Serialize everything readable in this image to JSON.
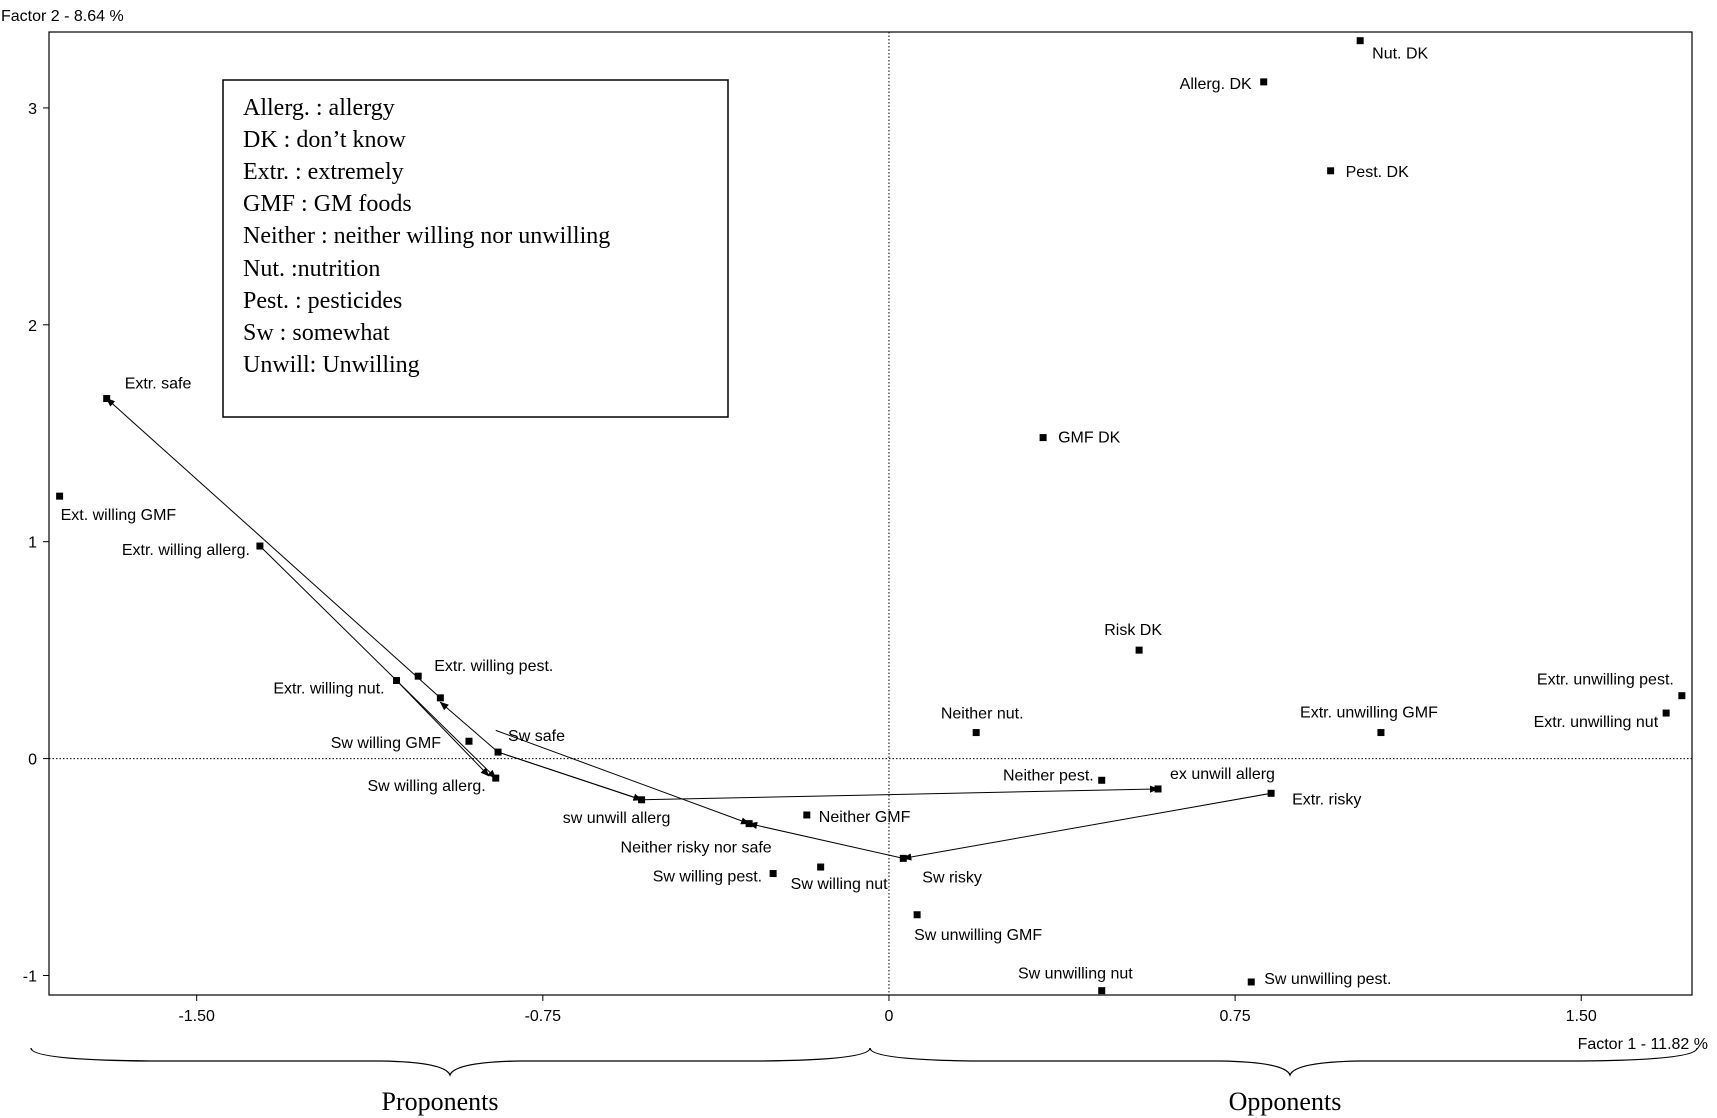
{
  "chart_data": {
    "type": "scatter",
    "xlabel": "Factor 1  -  11.82 %",
    "ylabel": "Factor 2  -  8.64 %",
    "xlim": [
      -1.82,
      1.74
    ],
    "ylim": [
      -1.09,
      3.35
    ],
    "xticks": [
      {
        "value": -1.5,
        "label": "-1.50"
      },
      {
        "value": -0.75,
        "label": "-0.75"
      },
      {
        "value": 0,
        "label": "0"
      },
      {
        "value": 0.75,
        "label": "0.75"
      },
      {
        "value": 1.5,
        "label": "1.50"
      }
    ],
    "yticks": [
      {
        "value": 0,
        "label": "0"
      },
      {
        "value": 1,
        "label": "1"
      },
      {
        "value": 2,
        "label": "2"
      },
      {
        "value": 3,
        "label": "3"
      },
      {
        "value": -1,
        "label": "-1"
      }
    ],
    "points": [
      {
        "label": "Nut. DK",
        "x": 1.021,
        "y": 3.31,
        "anchor": "start",
        "dx": 12,
        "dy": 18
      },
      {
        "label": "Allerg. DK",
        "x": 0.812,
        "y": 3.12,
        "anchor": "end",
        "dx": -12,
        "dy": 7
      },
      {
        "label": "Pest. DK",
        "x": 0.957,
        "y": 2.71,
        "anchor": "start",
        "dx": 15,
        "dy": 6
      },
      {
        "label": "GMF DK",
        "x": 0.334,
        "y": 1.48,
        "anchor": "start",
        "dx": 15,
        "dy": 5
      },
      {
        "label": "Risk DK",
        "x": 0.542,
        "y": 0.5,
        "anchor": "middle",
        "dx": -6,
        "dy": -15
      },
      {
        "label": "Extr. unwilling pest.",
        "x": 1.718,
        "y": 0.29,
        "anchor": "end",
        "dx": -8,
        "dy": -11
      },
      {
        "label": "Extr. unwilling nut",
        "x": 1.684,
        "y": 0.21,
        "anchor": "end",
        "dx": -8,
        "dy": 14
      },
      {
        "label": "Extr. unwilling GMF",
        "x": 1.066,
        "y": 0.12,
        "anchor": "middle",
        "dx": -12,
        "dy": -15
      },
      {
        "label": "Neither nut.",
        "x": 0.189,
        "y": 0.12,
        "anchor": "middle",
        "dx": 6,
        "dy": -14
      },
      {
        "label": "Neither pest.",
        "x": 0.461,
        "y": -0.1,
        "anchor": "end",
        "dx": -8,
        "dy": 0
      },
      {
        "label": "ex unwill allerg",
        "x": 0.583,
        "y": -0.14,
        "anchor": "start",
        "dx": 12,
        "dy": -10
      },
      {
        "label": "Extr. risky",
        "x": 0.828,
        "y": -0.16,
        "anchor": "start",
        "dx": 21,
        "dy": 11
      },
      {
        "label": "Neither GMF",
        "x": -0.178,
        "y": -0.26,
        "anchor": "start",
        "dx": 12,
        "dy": 7
      },
      {
        "label": "Sw willing nut",
        "x": -0.148,
        "y": -0.5,
        "anchor": "start",
        "dx": -30,
        "dy": 22
      },
      {
        "label": "Sw willing pest.",
        "x": -0.251,
        "y": -0.53,
        "anchor": "end",
        "dx": -11,
        "dy": 8
      },
      {
        "label": "Sw risky",
        "x": 0.031,
        "y": -0.46,
        "anchor": "start",
        "dx": 19,
        "dy": 24
      },
      {
        "label": "Sw unwilling GMF",
        "x": 0.061,
        "y": -0.72,
        "anchor": "start",
        "dx": -3,
        "dy": 25
      },
      {
        "label": "Sw unwilling nut",
        "x": 0.461,
        "y": -1.07,
        "anchor": "end",
        "dx": 31,
        "dy": -12
      },
      {
        "label": "Sw unwilling pest.",
        "x": 0.785,
        "y": -1.03,
        "anchor": "start",
        "dx": 13,
        "dy": 2
      },
      {
        "label": "Extr. safe",
        "x": -1.695,
        "y": 1.66,
        "anchor": "start",
        "dx": 18,
        "dy": -10
      },
      {
        "label": "Ext. willing GMF",
        "x": -1.797,
        "y": 1.21,
        "anchor": "start",
        "dx": 1,
        "dy": 24
      },
      {
        "label": "Extr. willing allerg.",
        "x": -1.363,
        "y": 0.98,
        "anchor": "end",
        "dx": -10,
        "dy": 9
      },
      {
        "label": "Extr. willing pest.",
        "x": -1.02,
        "y": 0.38,
        "anchor": "start",
        "dx": 16,
        "dy": -5
      },
      {
        "label": "Extr. willing nut.",
        "x": -1.067,
        "y": 0.36,
        "anchor": "end",
        "dx": -12,
        "dy": 13
      },
      {
        "label": "Sw willing GMF",
        "x": -0.91,
        "y": 0.08,
        "anchor": "end",
        "dx": -28,
        "dy": 7
      },
      {
        "label": "Sw safe",
        "x": -0.847,
        "y": 0.03,
        "anchor": "start",
        "dx": 10,
        "dy": -11
      },
      {
        "label": "Sw willing allerg.",
        "x": -0.852,
        "y": -0.09,
        "anchor": "end",
        "dx": -10,
        "dy": 13
      },
      {
        "label": "sw unwill allerg",
        "x": -0.536,
        "y": -0.19,
        "anchor": "middle",
        "dx": -25,
        "dy": 23
      },
      {
        "label": "Neither risky nor safe",
        "x": -0.303,
        "y": -0.3,
        "anchor": "middle",
        "dx": -53,
        "dy": 29
      },
      {
        "label": "",
        "x": -0.972,
        "y": 0.28,
        "anchor": "start",
        "dx": 0,
        "dy": 0
      }
    ],
    "arrows": [
      {
        "from": [
          -0.972,
          0.28
        ],
        "to": [
          -1.695,
          1.66
        ]
      },
      {
        "from": [
          -1.363,
          0.98
        ],
        "to": [
          -0.852,
          -0.09
        ]
      },
      {
        "from": [
          -1.067,
          0.36
        ],
        "to": [
          -0.867,
          -0.08
        ]
      },
      {
        "from": [
          -0.847,
          0.03
        ],
        "to": [
          -0.972,
          0.26
        ]
      },
      {
        "from": [
          -0.847,
          0.03
        ],
        "to": [
          -0.536,
          -0.19
        ]
      },
      {
        "from": [
          -0.852,
          0.13
        ],
        "to": [
          -0.303,
          -0.3
        ]
      },
      {
        "from": [
          0.031,
          -0.46
        ],
        "to": [
          -0.303,
          -0.3
        ]
      },
      {
        "from": [
          0.828,
          -0.16
        ],
        "to": [
          0.031,
          -0.46
        ]
      },
      {
        "from": [
          -0.847,
          0.03
        ],
        "to": [
          -0.536,
          -0.19
        ]
      },
      {
        "from": [
          -0.536,
          -0.19
        ],
        "to": [
          0.583,
          -0.14
        ]
      }
    ]
  },
  "legend": {
    "lines": [
      "Allerg. : allergy",
      "DK : don’t know",
      "Extr. : extremely",
      "GMF : GM foods",
      "Neither : neither willing nor unwilling",
      "Nut. :nutrition",
      "Pest. : pesticides",
      "Sw : somewhat",
      "Unwill: Unwilling"
    ]
  },
  "groups": {
    "left_label": "Proponents",
    "right_label": "Opponents"
  }
}
